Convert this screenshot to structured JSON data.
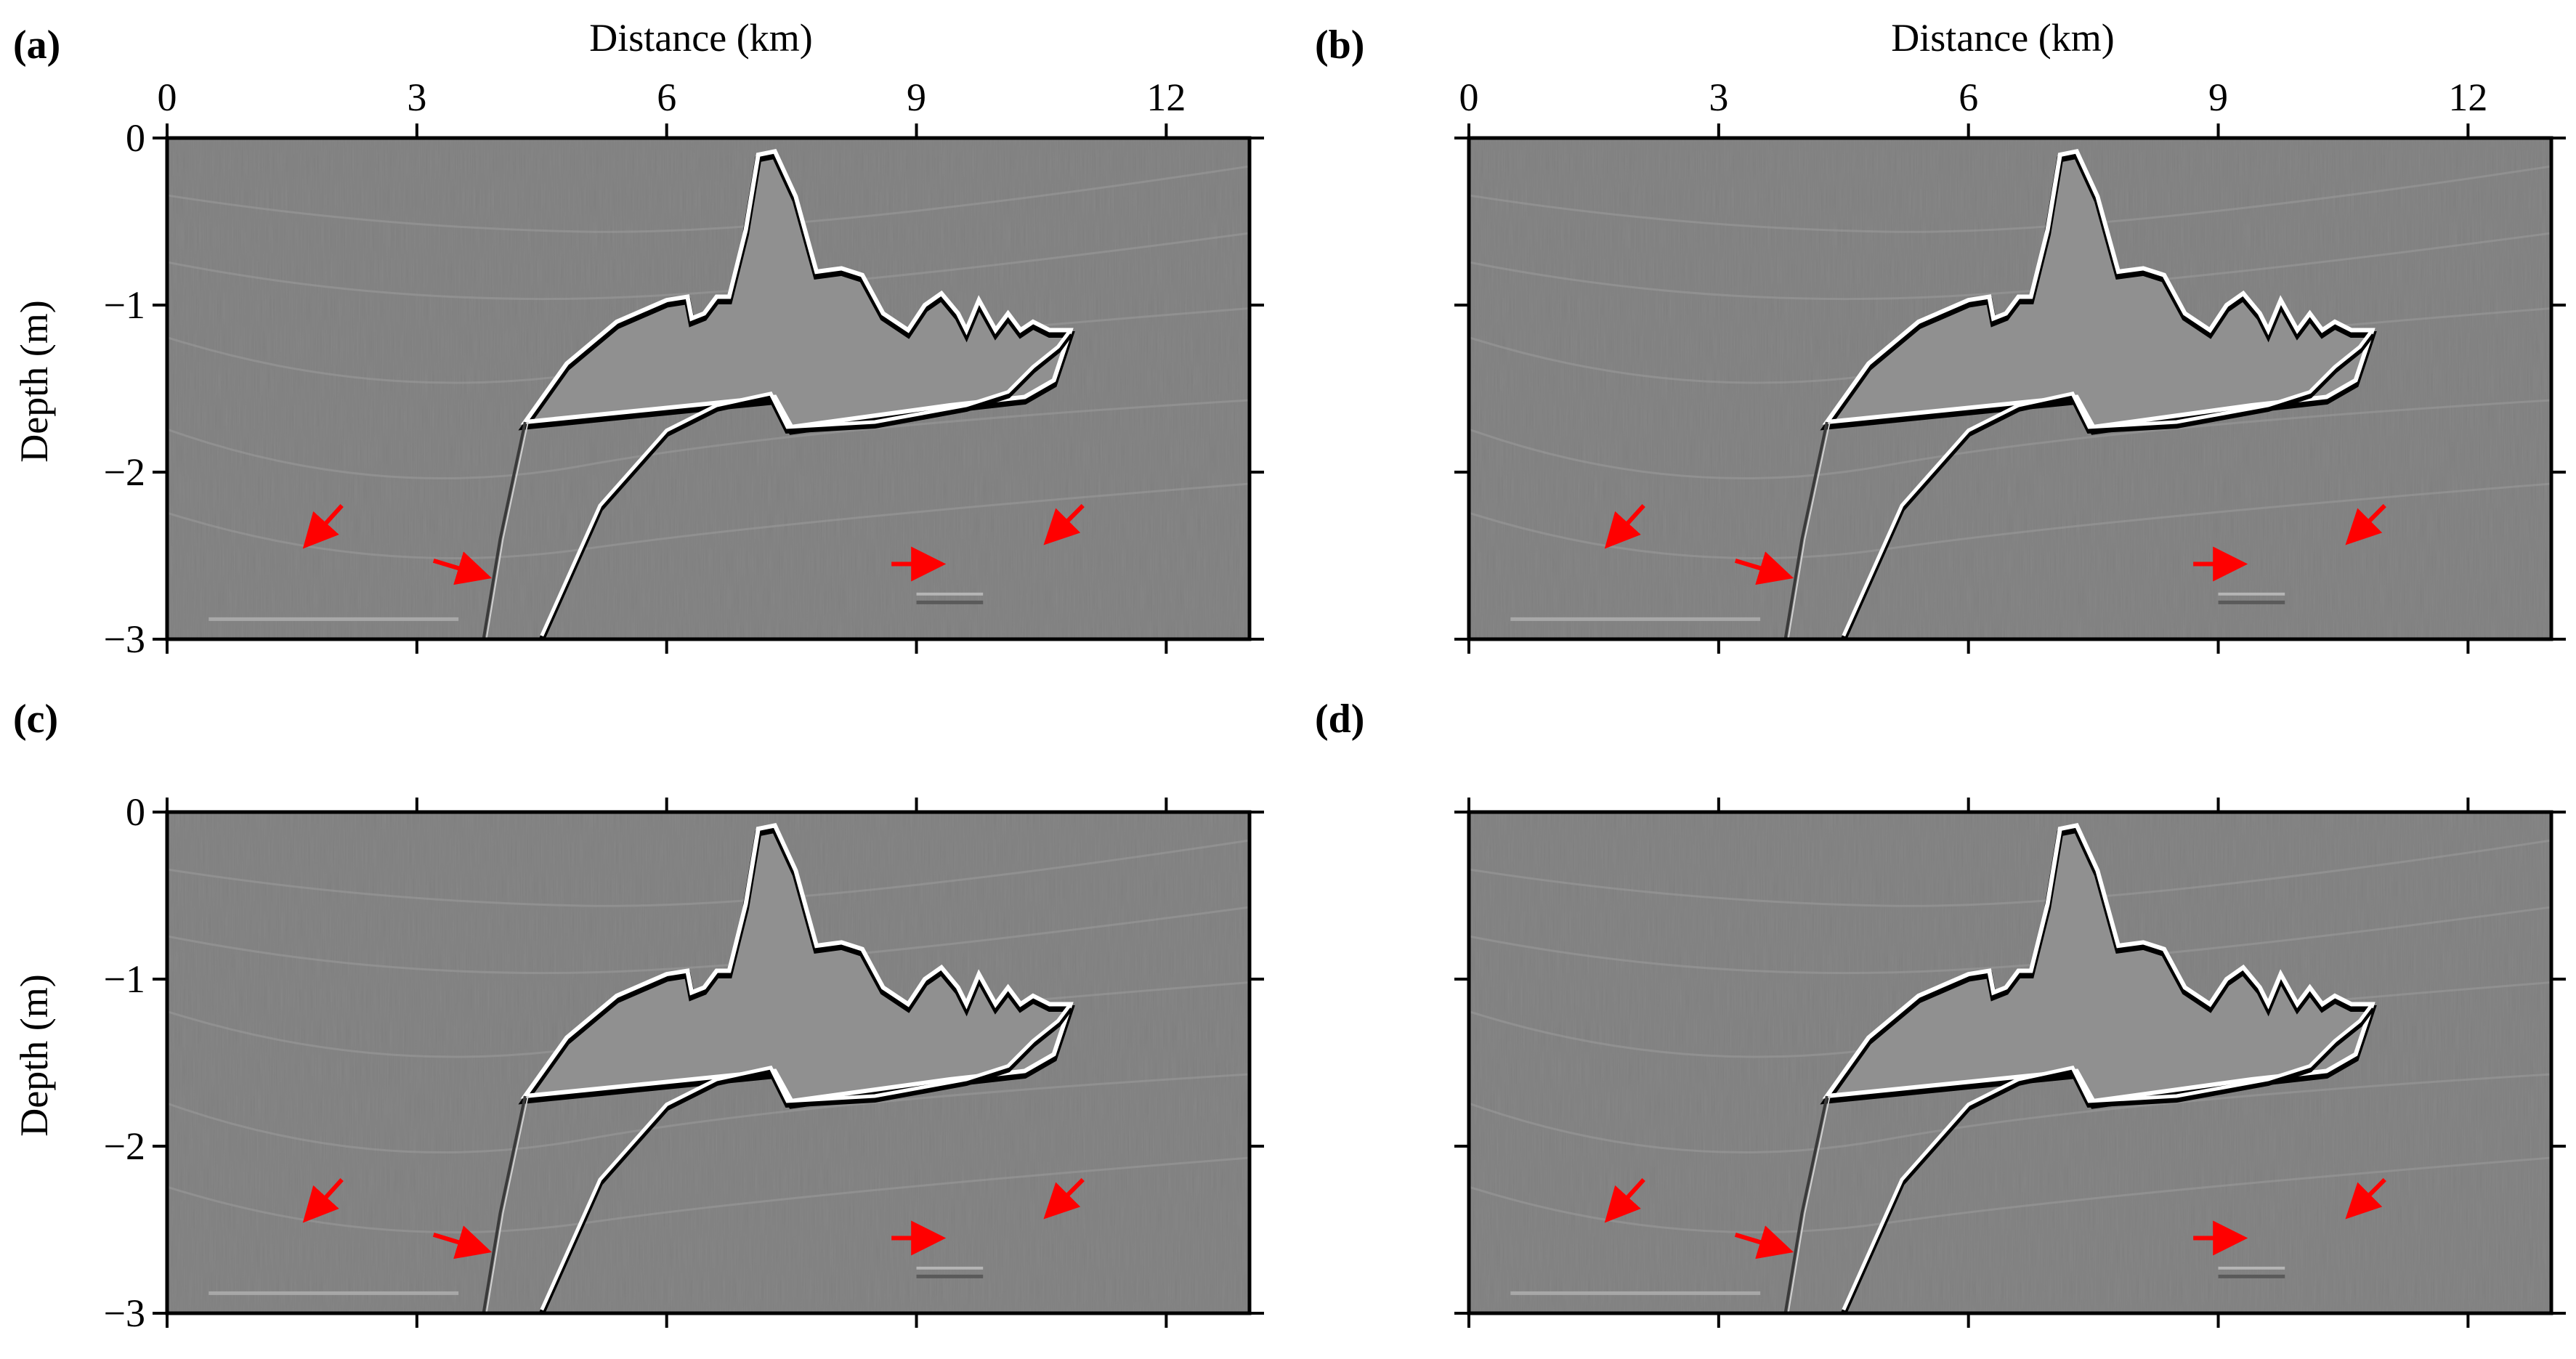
{
  "figure": {
    "x_axis_title": "Distance (km)",
    "y_axis_title": "Depth (m)",
    "image_background": "#7f7f7f",
    "arrow_color": "#ff0000",
    "reflector_color": "#ffffff",
    "reflector_shadow": "#000000"
  },
  "chart_data": [
    {
      "id": "a",
      "label": "(a)",
      "type": "heatmap",
      "title": "",
      "xlabel": "Distance (km)",
      "ylabel": "Depth (m)",
      "xlim": [
        0,
        13
      ],
      "ylim": [
        -3,
        0
      ],
      "xticks": [
        0,
        3,
        6,
        9,
        12
      ],
      "xtick_labels": [
        "0",
        "3",
        "6",
        "9",
        "12"
      ],
      "yticks": [
        0,
        -1,
        -2,
        -3
      ],
      "ytick_labels": [
        "0",
        "−1",
        "−2",
        "−3"
      ],
      "show_top_tick_labels": true,
      "show_left_tick_labels": true,
      "show_x_title": true,
      "show_y_title": true,
      "annotations": [
        {
          "type": "arrow",
          "from": [
            2.1,
            -2.2
          ],
          "to": [
            1.7,
            -2.42
          ]
        },
        {
          "type": "arrow",
          "from": [
            3.2,
            -2.53
          ],
          "to": [
            3.8,
            -2.62
          ]
        },
        {
          "type": "arrow",
          "from": [
            8.7,
            -2.55
          ],
          "to": [
            9.25,
            -2.55
          ]
        },
        {
          "type": "arrow",
          "from": [
            11.0,
            -2.2
          ],
          "to": [
            10.6,
            -2.4
          ]
        }
      ]
    },
    {
      "id": "b",
      "label": "(b)",
      "type": "heatmap",
      "title": "",
      "xlabel": "Distance (km)",
      "ylabel": "Depth (m)",
      "xlim": [
        0,
        13
      ],
      "ylim": [
        -3,
        0
      ],
      "xticks": [
        0,
        3,
        6,
        9,
        12
      ],
      "xtick_labels": [
        "0",
        "3",
        "6",
        "9",
        "12"
      ],
      "yticks": [
        0,
        -1,
        -2,
        -3
      ],
      "ytick_labels": [
        "0",
        "−1",
        "−2",
        "−3"
      ],
      "show_top_tick_labels": true,
      "show_left_tick_labels": false,
      "show_x_title": true,
      "show_y_title": false,
      "annotations": [
        {
          "type": "arrow",
          "from": [
            2.1,
            -2.2
          ],
          "to": [
            1.7,
            -2.42
          ]
        },
        {
          "type": "arrow",
          "from": [
            3.2,
            -2.53
          ],
          "to": [
            3.8,
            -2.62
          ]
        },
        {
          "type": "arrow",
          "from": [
            8.7,
            -2.55
          ],
          "to": [
            9.25,
            -2.55
          ]
        },
        {
          "type": "arrow",
          "from": [
            11.0,
            -2.2
          ],
          "to": [
            10.6,
            -2.4
          ]
        }
      ]
    },
    {
      "id": "c",
      "label": "(c)",
      "type": "heatmap",
      "title": "",
      "xlabel": "Distance (km)",
      "ylabel": "Depth (m)",
      "xlim": [
        0,
        13
      ],
      "ylim": [
        -3,
        0
      ],
      "xticks": [
        0,
        3,
        6,
        9,
        12
      ],
      "xtick_labels": [
        "0",
        "3",
        "6",
        "9",
        "12"
      ],
      "yticks": [
        0,
        -1,
        -2,
        -3
      ],
      "ytick_labels": [
        "0",
        "−1",
        "−2",
        "−3"
      ],
      "show_top_tick_labels": false,
      "show_left_tick_labels": true,
      "show_x_title": false,
      "show_y_title": true,
      "annotations": [
        {
          "type": "arrow",
          "from": [
            2.1,
            -2.2
          ],
          "to": [
            1.7,
            -2.42
          ]
        },
        {
          "type": "arrow",
          "from": [
            3.2,
            -2.53
          ],
          "to": [
            3.8,
            -2.62
          ]
        },
        {
          "type": "arrow",
          "from": [
            8.7,
            -2.55
          ],
          "to": [
            9.25,
            -2.55
          ]
        },
        {
          "type": "arrow",
          "from": [
            11.0,
            -2.2
          ],
          "to": [
            10.6,
            -2.4
          ]
        }
      ]
    },
    {
      "id": "d",
      "label": "(d)",
      "type": "heatmap",
      "title": "",
      "xlabel": "Distance (km)",
      "ylabel": "Depth (m)",
      "xlim": [
        0,
        13
      ],
      "ylim": [
        -3,
        0
      ],
      "xticks": [
        0,
        3,
        6,
        9,
        12
      ],
      "xtick_labels": [
        "0",
        "3",
        "6",
        "9",
        "12"
      ],
      "yticks": [
        0,
        -1,
        -2,
        -3
      ],
      "ytick_labels": [
        "0",
        "−1",
        "−2",
        "−3"
      ],
      "show_top_tick_labels": false,
      "show_left_tick_labels": false,
      "show_x_title": false,
      "show_y_title": false,
      "annotations": [
        {
          "type": "arrow",
          "from": [
            2.1,
            -2.2
          ],
          "to": [
            1.7,
            -2.42
          ]
        },
        {
          "type": "arrow",
          "from": [
            3.2,
            -2.53
          ],
          "to": [
            3.8,
            -2.62
          ]
        },
        {
          "type": "arrow",
          "from": [
            8.7,
            -2.55
          ],
          "to": [
            9.25,
            -2.55
          ]
        },
        {
          "type": "arrow",
          "from": [
            11.0,
            -2.2
          ],
          "to": [
            10.6,
            -2.4
          ]
        }
      ]
    }
  ],
  "salt_body": {
    "top_outline": [
      [
        4.3,
        -1.7
      ],
      [
        4.8,
        -1.35
      ],
      [
        5.4,
        -1.1
      ],
      [
        6.0,
        -0.97
      ],
      [
        6.25,
        -0.95
      ],
      [
        6.3,
        -1.08
      ],
      [
        6.45,
        -1.05
      ],
      [
        6.6,
        -0.95
      ],
      [
        6.75,
        -0.95
      ],
      [
        6.95,
        -0.55
      ],
      [
        7.1,
        -0.1
      ],
      [
        7.3,
        -0.08
      ],
      [
        7.55,
        -0.35
      ],
      [
        7.8,
        -0.8
      ],
      [
        8.1,
        -0.78
      ],
      [
        8.35,
        -0.82
      ],
      [
        8.6,
        -1.05
      ],
      [
        8.9,
        -1.15
      ],
      [
        9.1,
        -1.0
      ],
      [
        9.3,
        -0.93
      ],
      [
        9.5,
        -1.05
      ],
      [
        9.6,
        -1.15
      ],
      [
        9.75,
        -0.97
      ],
      [
        9.95,
        -1.15
      ],
      [
        10.1,
        -1.05
      ],
      [
        10.25,
        -1.15
      ],
      [
        10.4,
        -1.1
      ],
      [
        10.6,
        -1.15
      ],
      [
        10.85,
        -1.15
      ],
      [
        10.65,
        -1.45
      ],
      [
        10.3,
        -1.55
      ],
      [
        9.4,
        -1.6
      ],
      [
        7.5,
        -1.73
      ],
      [
        7.3,
        -1.55
      ]
    ],
    "base_outline": [
      [
        4.5,
        -2.98
      ],
      [
        5.2,
        -2.2
      ],
      [
        6.0,
        -1.75
      ],
      [
        6.6,
        -1.6
      ],
      [
        7.25,
        -1.53
      ],
      [
        7.45,
        -1.73
      ],
      [
        8.5,
        -1.7
      ],
      [
        9.6,
        -1.6
      ],
      [
        10.1,
        -1.52
      ],
      [
        10.4,
        -1.37
      ],
      [
        10.7,
        -1.25
      ],
      [
        10.85,
        -1.15
      ]
    ],
    "steep_flank": [
      [
        3.8,
        -3.0
      ],
      [
        4.0,
        -2.4
      ],
      [
        4.3,
        -1.7
      ]
    ]
  }
}
